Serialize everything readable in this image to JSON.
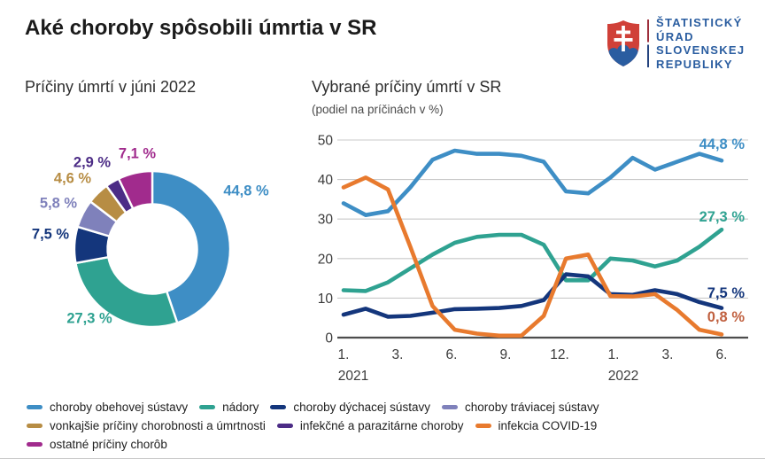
{
  "header": {
    "title": "Aké choroby spôsobili úmrtia v SR",
    "logo": {
      "lines": [
        "ŠTATISTICKÝ",
        "ÚRAD",
        "SLOVENSKEJ",
        "REPUBLIKY"
      ],
      "text_color": "#2A5DA0",
      "shield_red": "#D04038",
      "shield_blue": "#2A5DA0"
    }
  },
  "donut_section": {
    "title": "Príčiny úmrtí v júni 2022"
  },
  "line_section": {
    "title": "Vybrané príčiny úmrtí v SR",
    "subtitle": "(podiel na príčinách v %)"
  },
  "chart_data": [
    {
      "type": "pie",
      "donut": true,
      "title": "Príčiny úmrtí v júni 2022",
      "unit": "%",
      "slices": [
        {
          "label": "choroby obehovej sústavy",
          "value": 44.8,
          "display": "44,8 %",
          "color": "#3E8EC5"
        },
        {
          "label": "nádory",
          "value": 27.3,
          "display": "27,3 %",
          "color": "#2FA291"
        },
        {
          "label": "choroby dýchacej sústavy",
          "value": 7.5,
          "display": "7,5 %",
          "color": "#14367C"
        },
        {
          "label": "choroby tráviacej sústavy",
          "value": 5.8,
          "display": "5,8 %",
          "color": "#7F81BB"
        },
        {
          "label": "vonkajšie príčiny chorobnosti a úmrtnosti",
          "value": 4.6,
          "display": "4,6 %",
          "color": "#B78D44"
        },
        {
          "label": "infekčné a parazitárne choroby",
          "value": 2.9,
          "display": "2,9 %",
          "color": "#4C2C86"
        },
        {
          "label": "ostatné príčiny chorôb",
          "value": 7.1,
          "display": "7,1 %",
          "color": "#A12B8D"
        }
      ]
    },
    {
      "type": "line",
      "title": "Vybrané príčiny úmrtí v SR",
      "subtitle": "(podiel na príčinách v %)",
      "ylim": [
        0,
        50
      ],
      "y_ticks": [
        0,
        10,
        20,
        30,
        40,
        50
      ],
      "grid": true,
      "x_tick_labels": [
        "1.",
        "3.",
        "6.",
        "9.",
        "12.",
        "1.",
        "3.",
        "6."
      ],
      "x_year_labels": [
        {
          "text": "2021",
          "tick_index": 0
        },
        {
          "text": "2022",
          "tick_index": 5
        }
      ],
      "months": [
        "2021-01",
        "2021-02",
        "2021-03",
        "2021-04",
        "2021-05",
        "2021-06",
        "2021-07",
        "2021-08",
        "2021-09",
        "2021-10",
        "2021-11",
        "2021-12",
        "2022-01",
        "2022-02",
        "2022-03",
        "2022-04",
        "2022-05",
        "2022-06"
      ],
      "series": [
        {
          "name": "choroby obehovej sústavy",
          "color": "#3E8EC5",
          "end_label": "44,8 %",
          "values": [
            34,
            31,
            32,
            38,
            45,
            47.3,
            46.5,
            46.5,
            46,
            44.5,
            37,
            36.5,
            40.5,
            45.5,
            42.5,
            44.5,
            46.5,
            44.8
          ]
        },
        {
          "name": "nádory",
          "color": "#2FA291",
          "end_label": "27,3 %",
          "values": [
            12,
            11.8,
            14,
            17.5,
            21,
            24,
            25.5,
            26,
            26,
            23.5,
            14.5,
            14.5,
            20,
            19.5,
            18,
            19.5,
            23,
            27.3
          ]
        },
        {
          "name": "choroby dýchacej sústavy",
          "color": "#14367C",
          "end_label": "7,5 %",
          "values": [
            5.8,
            7.3,
            5.3,
            5.5,
            6.3,
            7.2,
            7.3,
            7.5,
            8,
            9.5,
            16,
            15.5,
            11,
            10.8,
            12,
            11,
            9,
            7.5
          ]
        },
        {
          "name": "infekcia COVID-19",
          "color": "#E87A2E",
          "end_label": "0,8 %",
          "end_label_color": "#C0603F",
          "values": [
            38,
            40.5,
            37.5,
            23,
            8,
            2,
            1,
            0.5,
            0.5,
            5.5,
            20,
            21,
            10.5,
            10.4,
            11,
            7,
            2,
            0.8
          ]
        }
      ]
    }
  ],
  "legend": {
    "items": [
      {
        "label": "choroby obehovej sústavy",
        "color": "#3E8EC5"
      },
      {
        "label": "nádory",
        "color": "#2FA291"
      },
      {
        "label": "choroby dýchacej sústavy",
        "color": "#14367C"
      },
      {
        "label": "choroby tráviacej sústavy",
        "color": "#7F81BB"
      },
      {
        "label": "vonkajšie príčiny chorobnosti a úmrtnosti",
        "color": "#B78D44"
      },
      {
        "label": "infekčné a parazitárne choroby",
        "color": "#4C2C86"
      },
      {
        "label": "infekcia COVID-19",
        "color": "#E87A2E"
      },
      {
        "label": "ostatné príčiny chorôb",
        "color": "#A12B8D"
      }
    ]
  }
}
